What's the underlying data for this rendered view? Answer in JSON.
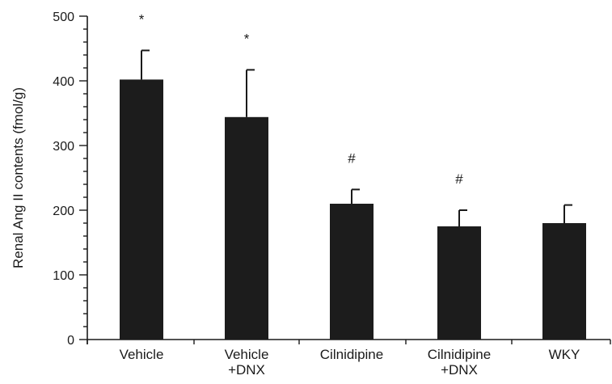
{
  "chart_data": {
    "type": "bar",
    "ylabel": "Renal Ang II contents (fmol/g)",
    "ylim": [
      0,
      500
    ],
    "yticks": [
      0,
      100,
      200,
      300,
      400,
      500
    ],
    "categories": [
      [
        "Vehicle"
      ],
      [
        "Vehicle",
        "+DNX"
      ],
      [
        "Cilnidipine"
      ],
      [
        "Cilnidipine",
        "+DNX"
      ],
      [
        "WKY"
      ]
    ],
    "values": [
      402,
      344,
      210,
      175,
      180
    ],
    "error": [
      45,
      73,
      22,
      25,
      28
    ],
    "annotations": [
      "*",
      "*",
      "#",
      "#",
      ""
    ],
    "bar_color": "#1c1c1c",
    "grid": false,
    "legend": "none"
  }
}
